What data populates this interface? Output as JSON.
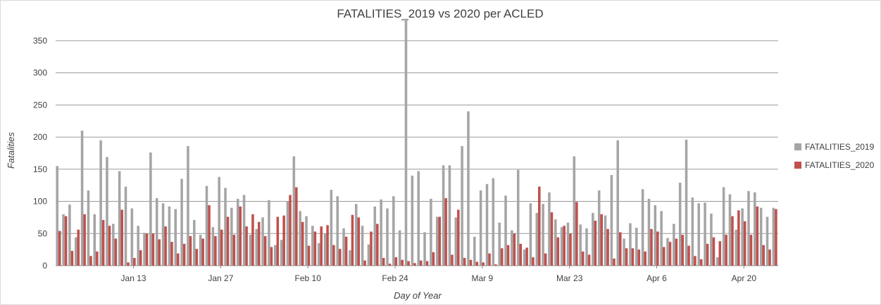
{
  "chart_data": {
    "type": "bar",
    "title": "FATALITIES_2019 vs 2020 per ACLED",
    "xlabel": "Day of Year",
    "ylabel": "Fatalities",
    "ylim": [
      0,
      375
    ],
    "yticks": [
      0,
      50,
      100,
      150,
      200,
      250,
      300,
      350
    ],
    "grid": true,
    "legend_position": "right",
    "x_tick_labels": [
      {
        "label": "Jan 13",
        "day": 13
      },
      {
        "label": "Jan 27",
        "day": 27
      },
      {
        "label": "Feb 10",
        "day": 41
      },
      {
        "label": "Feb 24",
        "day": 55
      },
      {
        "label": "Mar 9",
        "day": 69
      },
      {
        "label": "Mar 23",
        "day": 83
      },
      {
        "label": "Apr 6",
        "day": 97
      },
      {
        "label": "Apr 20",
        "day": 111
      }
    ],
    "days": [
      1,
      2,
      3,
      4,
      5,
      6,
      7,
      8,
      9,
      10,
      11,
      12,
      13,
      14,
      15,
      16,
      17,
      18,
      19,
      20,
      21,
      22,
      23,
      24,
      25,
      26,
      27,
      28,
      29,
      30,
      31,
      32,
      33,
      34,
      35,
      36,
      37,
      38,
      39,
      40,
      41,
      42,
      43,
      44,
      45,
      46,
      47,
      48,
      49,
      50,
      51,
      52,
      53,
      54,
      55,
      56,
      57,
      58,
      59,
      60,
      61,
      62,
      63,
      64,
      65,
      66,
      67,
      68,
      69,
      70,
      71,
      72,
      73,
      74,
      75,
      76,
      77,
      78,
      79,
      80,
      81,
      82,
      83,
      84,
      85,
      86,
      87,
      88,
      89,
      90,
      91,
      92,
      93,
      94,
      95,
      96,
      97,
      98,
      99,
      100,
      101,
      102,
      103,
      104,
      105,
      106,
      107,
      108,
      109,
      110,
      111,
      112,
      113,
      114,
      115,
      116
    ],
    "series": [
      {
        "name": "FATALITIES_2019",
        "color": "#a5a5a5",
        "values": [
          155,
          80,
          95,
          44,
          210,
          117,
          80,
          195,
          169,
          65,
          147,
          123,
          89,
          62,
          51,
          176,
          105,
          97,
          92,
          88,
          135,
          186,
          71,
          48,
          124,
          60,
          138,
          121,
          90,
          104,
          110,
          48,
          57,
          75,
          102,
          32,
          40,
          100,
          170,
          85,
          77,
          62,
          35,
          50,
          118,
          108,
          58,
          24,
          96,
          62,
          33,
          92,
          103,
          89,
          108,
          55,
          384,
          140,
          147,
          52,
          104,
          76,
          156,
          156,
          75,
          186,
          240,
          45,
          117,
          127,
          136,
          67,
          109,
          55,
          149,
          25,
          97,
          82,
          96,
          114,
          72,
          60,
          67,
          170,
          64,
          58,
          82,
          117,
          78,
          141,
          195,
          42,
          66,
          59,
          119,
          104,
          94,
          85,
          43,
          65,
          129,
          196,
          106,
          97,
          98,
          81,
          13,
          122,
          111,
          56,
          89,
          116,
          114,
          90,
          76,
          90
        ],
        "values_tail_note": ""
      },
      {
        "name": "FATALITIES_2020",
        "color": "#c0504d",
        "values": [
          54,
          77,
          23,
          56,
          80,
          15,
          22,
          71,
          62,
          42,
          87,
          5,
          12,
          24,
          50,
          50,
          41,
          61,
          37,
          19,
          34,
          46,
          26,
          42,
          94,
          46,
          56,
          76,
          48,
          92,
          61,
          80,
          68,
          46,
          29,
          76,
          78,
          110,
          122,
          68,
          31,
          53,
          61,
          63,
          32,
          26,
          45,
          79,
          75,
          8,
          53,
          65,
          12,
          3,
          13,
          9,
          7,
          4,
          8,
          7,
          21,
          76,
          105,
          17,
          87,
          12,
          9,
          6,
          5,
          19,
          2,
          27,
          32,
          50,
          34,
          28,
          13,
          123,
          19,
          83,
          44,
          62,
          50,
          99,
          22,
          17,
          70,
          80,
          57,
          11,
          52,
          27,
          27,
          25,
          22,
          57,
          53,
          29,
          37,
          42,
          48,
          31,
          15,
          10,
          34,
          44,
          38,
          48,
          77,
          86,
          69,
          48,
          92,
          32,
          25,
          88
        ]
      }
    ]
  }
}
